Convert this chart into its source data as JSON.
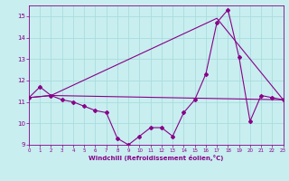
{
  "background_color": "#c8eef0",
  "grid_color": "#aadddd",
  "line_color": "#880088",
  "xlabel": "Windchill (Refroidissement éolien,°C)",
  "xlim": [
    0,
    23
  ],
  "ylim": [
    9,
    15.5
  ],
  "yticks": [
    9,
    10,
    11,
    12,
    13,
    14,
    15
  ],
  "xticks": [
    0,
    1,
    2,
    3,
    4,
    5,
    6,
    7,
    8,
    9,
    10,
    11,
    12,
    13,
    14,
    15,
    16,
    17,
    18,
    19,
    20,
    21,
    22,
    23
  ],
  "line1_x": [
    0,
    1,
    2,
    3,
    4,
    5,
    6,
    7,
    8,
    9,
    10,
    11,
    12,
    13,
    14,
    15,
    16,
    17,
    18,
    19,
    20,
    21,
    22,
    23
  ],
  "line1_y": [
    11.2,
    11.7,
    11.3,
    11.1,
    11.0,
    10.8,
    10.6,
    10.5,
    9.3,
    9.0,
    9.4,
    9.8,
    9.8,
    9.4,
    10.5,
    11.1,
    12.3,
    14.7,
    15.3,
    13.1,
    10.1,
    11.3,
    11.2,
    11.1
  ],
  "line2_x": [
    0,
    2,
    23
  ],
  "line2_y": [
    11.2,
    11.3,
    11.1
  ],
  "line3_x": [
    0,
    2,
    17,
    23
  ],
  "line3_y": [
    11.2,
    11.3,
    14.9,
    11.1
  ]
}
